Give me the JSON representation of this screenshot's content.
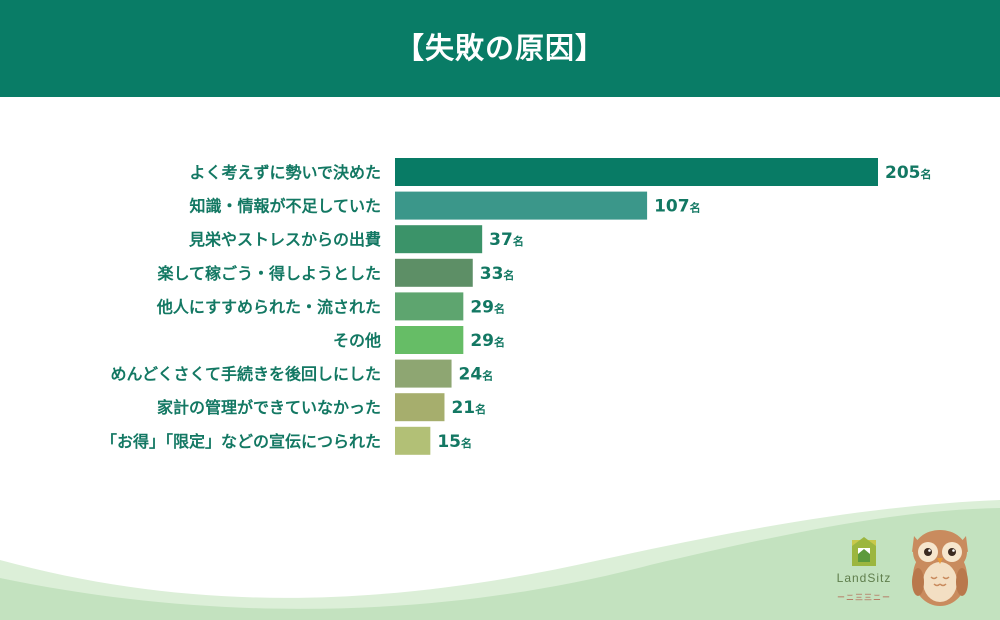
{
  "header": {
    "title": "【失敗の原因】"
  },
  "chart_data": {
    "type": "bar",
    "orientation": "horizontal",
    "title": "【失敗の原因】",
    "categories": [
      "よく考えずに勢いで決めた",
      "知識・情報が不足していた",
      "見栄やストレスからの出費",
      "楽して稼ごう・得しようとした",
      "他人にすすめられた・流された",
      "その他",
      "めんどくさくて手続きを後回しにした",
      "家計の管理ができていなかった",
      "「お得」「限定」などの宣伝につられた"
    ],
    "values": [
      205,
      107,
      37,
      33,
      29,
      29,
      24,
      21,
      15
    ],
    "value_unit": "名",
    "bar_colors": [
      "#087b65",
      "#3b978a",
      "#3b9369",
      "#5d8f66",
      "#5ea56f",
      "#66bd66",
      "#8ea672",
      "#a6ae6d",
      "#b2c076"
    ],
    "label_color": "#137863",
    "xlim": [
      0,
      205
    ],
    "grid": false,
    "legend": "none"
  },
  "brand": {
    "name": "LandSitz",
    "tagline": "ーニ三三ニー",
    "icon": "house-logo-icon",
    "mascot": "owl-mascot-icon"
  },
  "colors": {
    "header_bg": "#097c66",
    "wave_light": "#dcefd8",
    "wave_dark": "#bfe0bc"
  }
}
